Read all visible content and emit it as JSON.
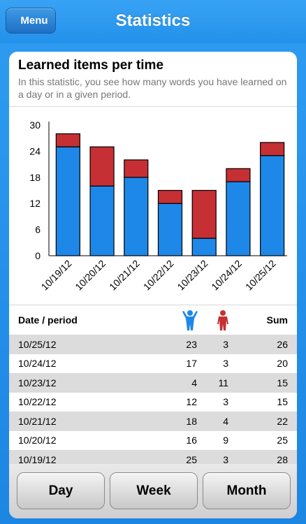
{
  "nav": {
    "menu_label": "Menu",
    "title": "Statistics"
  },
  "card": {
    "title": "Learned items per time",
    "description": "In this statistic, you see how many words you have learned on a day or in a given period."
  },
  "colors": {
    "known": "#1e88e8",
    "unknown": "#c62f33",
    "accent": "#2391ea"
  },
  "chart_data": {
    "type": "bar",
    "stacked": true,
    "categories": [
      "10/19/12",
      "10/20/12",
      "10/21/12",
      "10/22/12",
      "10/23/12",
      "10/24/12",
      "10/25/12"
    ],
    "series": [
      {
        "values": [
          25,
          16,
          18,
          12,
          4,
          17,
          23
        ]
      },
      {
        "values": [
          3,
          9,
          4,
          3,
          11,
          3,
          3
        ]
      }
    ],
    "ylim": [
      0,
      30
    ],
    "yticks": [
      0,
      6,
      12,
      18,
      24,
      30
    ],
    "grid": false
  },
  "table": {
    "header": {
      "date": "Date / period",
      "sum": "Sum",
      "known_icon": "person-arms-up-icon",
      "unknown_icon": "person-standing-icon"
    },
    "rows": [
      {
        "date": "10/25/12",
        "known": "23",
        "unknown": "3",
        "sum": "26"
      },
      {
        "date": "10/24/12",
        "known": "17",
        "unknown": "3",
        "sum": "20"
      },
      {
        "date": "10/23/12",
        "known": "4",
        "unknown": "11",
        "sum": "15"
      },
      {
        "date": "10/22/12",
        "known": "12",
        "unknown": "3",
        "sum": "15"
      },
      {
        "date": "10/21/12",
        "known": "18",
        "unknown": "4",
        "sum": "22"
      },
      {
        "date": "10/20/12",
        "known": "16",
        "unknown": "9",
        "sum": "25"
      },
      {
        "date": "10/19/12",
        "known": "25",
        "unknown": "3",
        "sum": "28"
      }
    ]
  },
  "footer": {
    "day": "Day",
    "week": "Week",
    "month": "Month"
  }
}
